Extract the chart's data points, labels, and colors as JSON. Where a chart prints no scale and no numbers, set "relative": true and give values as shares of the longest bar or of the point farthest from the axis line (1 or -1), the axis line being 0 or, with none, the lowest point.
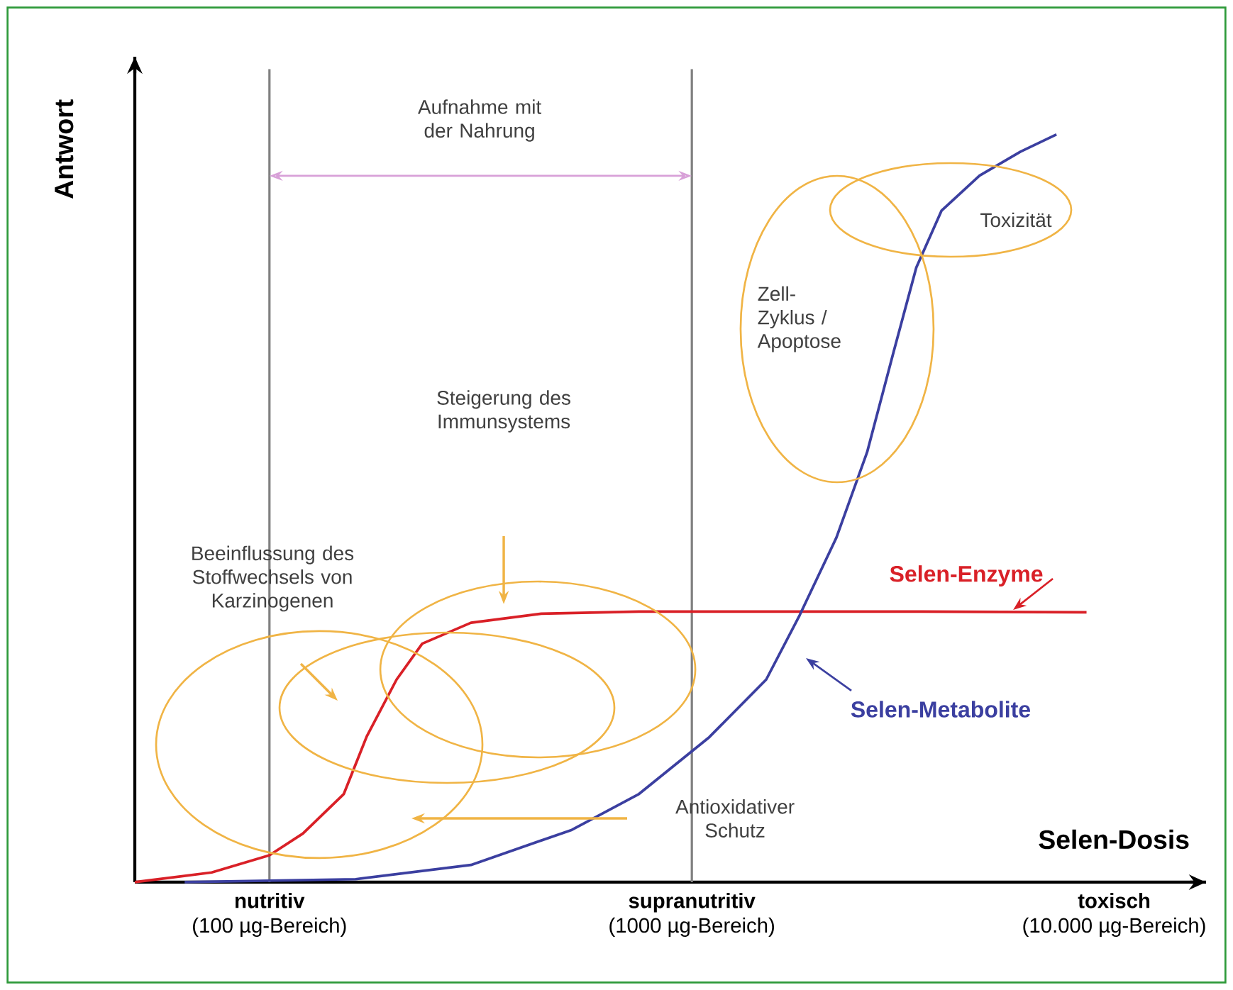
{
  "chart_data": {
    "type": "line",
    "relative": true,
    "log": "x",
    "tick_labels": "x",
    "xlabel": "Selen-Dosis",
    "ylabel": "Antwort",
    "xlim": [
      48,
      16500
    ],
    "xticks": [
      {
        "value": 100,
        "label": "**nutritiv**\n(100 µg-Bereich)"
      },
      {
        "value": 1000,
        "label": "**supranutritiv**\n(1000 µg-Bereich)"
      },
      {
        "value": 10000,
        "label": "**toxisch**\n(10.000 µg-Bereich)"
      }
    ],
    "series": [
      {
        "name": "Selen-Enzyme",
        "color": "#d92027",
        "x": [
          48,
          73,
          100,
          120,
          150,
          170,
          200,
          230,
          300,
          440,
          750,
          1600,
          3500,
          8600
        ],
        "values": [
          0,
          0.013,
          0.036,
          0.065,
          0.118,
          0.195,
          0.271,
          0.319,
          0.347,
          0.359,
          0.362,
          0.362,
          0.362,
          0.361
        ]
      },
      {
        "name": "Selen-Metabolite",
        "color": "#3b3fa0",
        "x": [
          63,
          160,
          300,
          520,
          750,
          1100,
          1500,
          1800,
          2200,
          2600,
          3000,
          3400,
          3900,
          4800,
          6000,
          7300
        ],
        "values": [
          0,
          0.004,
          0.023,
          0.07,
          0.118,
          0.194,
          0.271,
          0.357,
          0.461,
          0.575,
          0.708,
          0.822,
          0.898,
          0.945,
          0.977,
          1
        ]
      }
    ],
    "ref_lines": [
      {
        "axis": "x",
        "value": 100,
        "color": "#808080"
      },
      {
        "axis": "x",
        "value": 1000,
        "color": "#808080"
      }
    ],
    "annotations": [
      "Aufnahme mit der Nahrung",
      "Steigerung des Immunsystems",
      "Beeinflussung des Stoffwechsels von Karzinogenen",
      "Zell-Zyklus / Apoptose",
      "Toxizität",
      "Antioxidativer Schutz"
    ]
  }
}
